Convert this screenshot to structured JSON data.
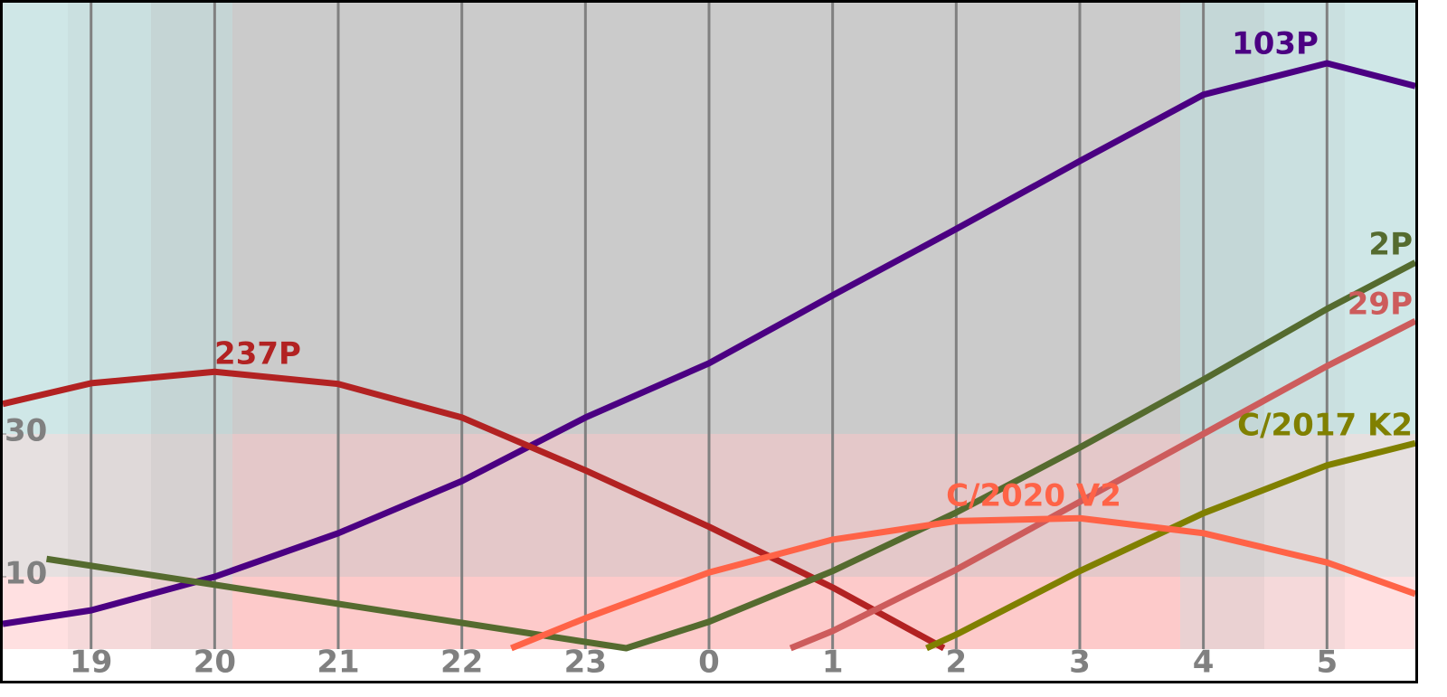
{
  "chart_data": {
    "type": "line",
    "xlim": [
      18.285,
      29.715
    ],
    "xticks": [
      19,
      20,
      21,
      22,
      23,
      {
        "value": 24,
        "label": "0"
      },
      {
        "value": 25,
        "label": "1"
      },
      {
        "value": 26,
        "label": "2"
      },
      {
        "value": 27,
        "label": "3"
      },
      {
        "value": 28,
        "label": "4"
      },
      {
        "value": 29,
        "label": "5"
      }
    ],
    "ylim": [
      0,
      90
    ],
    "yticks": [
      10,
      30
    ],
    "grid": true,
    "series": [
      {
        "name": "103P",
        "color": "#4b0082",
        "x": [
          18.285,
          19,
          20,
          21,
          22,
          23,
          24,
          25,
          26,
          27,
          28,
          29,
          29.715
        ],
        "values": [
          3.4,
          5.3,
          10,
          16.1,
          23.4,
          32.3,
          39.9,
          49.4,
          58.7,
          68.2,
          77.5,
          81.9,
          78.7
        ]
      },
      {
        "name": "237P",
        "color": "#b22222",
        "x": [
          18.285,
          19,
          20,
          21,
          22,
          23,
          24,
          25,
          25.9
        ],
        "values": [
          34.2,
          37.1,
          38.7,
          37,
          32.3,
          24.9,
          17,
          8.5,
          0
        ]
      },
      {
        "name": "2P",
        "color": "#556b2f",
        "x": [
          18.64,
          23.33,
          24,
          25,
          26,
          27,
          28,
          29,
          29.715
        ],
        "values": [
          12.5,
          0,
          3.7,
          10.8,
          19,
          28.1,
          37.6,
          47.5,
          54
        ]
      },
      {
        "name": "29P",
        "color": "#cd5c5c",
        "x": [
          24.66,
          25,
          26,
          27,
          28,
          29,
          29.715
        ],
        "values": [
          0,
          2.4,
          11,
          20.5,
          30,
          39.5,
          45.8
        ]
      },
      {
        "name": "C/2017 K2",
        "color": "#808000",
        "x": [
          25.76,
          26,
          27,
          28,
          29,
          29.715
        ],
        "values": [
          0,
          1.9,
          10.8,
          18.9,
          25.6,
          28.7
        ]
      },
      {
        "name": "C/2020 V2",
        "color": "#ff6347",
        "x": [
          22.4,
          23,
          24,
          25,
          26,
          27,
          28,
          29,
          29.715
        ],
        "values": [
          0,
          4.2,
          10.6,
          15.2,
          17.8,
          18.2,
          16.1,
          12,
          7.6
        ]
      }
    ]
  }
}
